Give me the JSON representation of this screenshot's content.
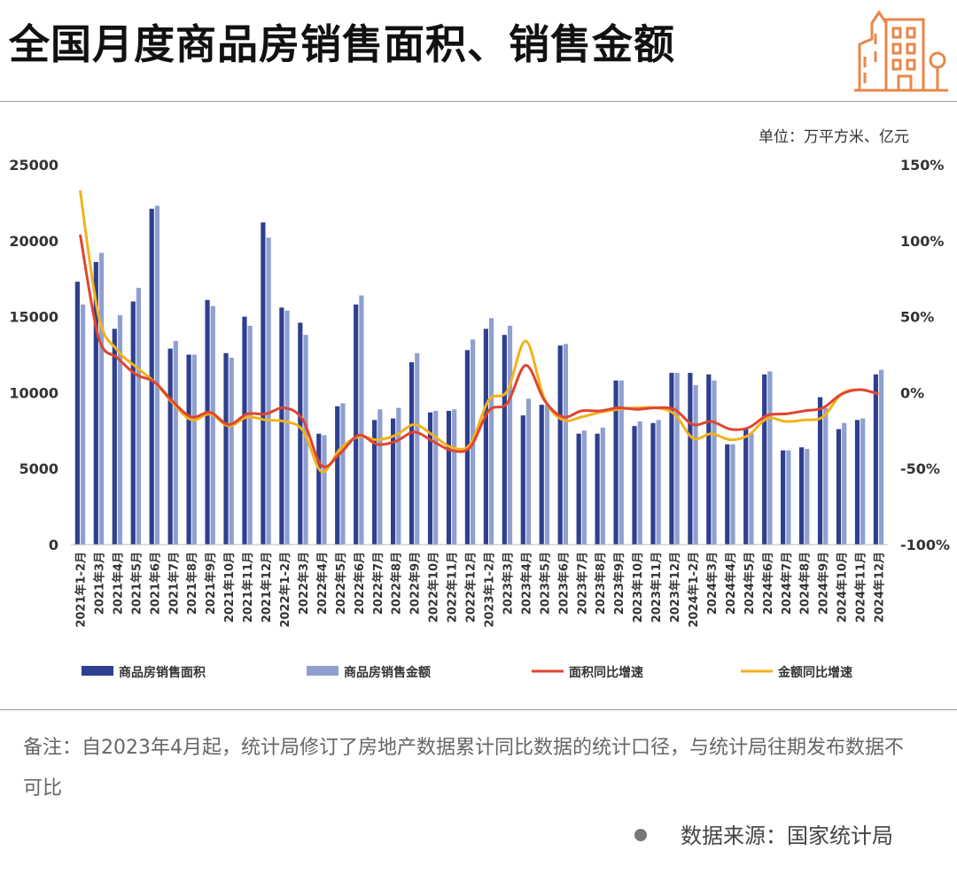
{
  "title": "全国月度商品房销售面积、销售金额",
  "unit_label": "单位：万平方米、亿元",
  "note": "备注：自2023年4月起，统计局修订了房地产数据累计同比数据的统计口径，与统计局往期发布数据不可比",
  "source": "数据来源：国家统计局",
  "icons": {
    "header": "building-icon",
    "source_marker": "dot-icon"
  },
  "colors": {
    "area_bar": "#2e3f8f",
    "amount_bar": "#8f9fd0",
    "area_line": "#e0452f",
    "amount_line": "#f2b21c"
  },
  "chart_data": {
    "type": "bar",
    "categories": [
      "2021年1-2月",
      "2021年3月",
      "2021年4月",
      "2021年5月",
      "2021年6月",
      "2021年7月",
      "2021年8月",
      "2021年9月",
      "2021年10月",
      "2021年11月",
      "2021年12月",
      "2022年1-2月",
      "2022年3月",
      "2022年4月",
      "2022年5月",
      "2022年6月",
      "2022年7月",
      "2022年8月",
      "2022年9月",
      "2022年10月",
      "2022年11月",
      "2022年12月",
      "2023年1-2月",
      "2023年3月",
      "2023年4月",
      "2023年5月",
      "2023年6月",
      "2023年7月",
      "2023年8月",
      "2023年9月",
      "2023年10月",
      "2023年11月",
      "2023年12月",
      "2024年1-2月",
      "2024年3月",
      "2024年4月",
      "2024年5月",
      "2024年6月",
      "2024年7月",
      "2024年8月",
      "2024年9月",
      "2024年10月",
      "2024年11月",
      "2024年12月"
    ],
    "y_left": {
      "ticks": [
        "0",
        "5000",
        "10000",
        "15000",
        "20000",
        "25000"
      ],
      "lim": [
        0,
        25000
      ]
    },
    "y_right": {
      "ticks": [
        "-100%",
        "-50%",
        "0%",
        "50%",
        "100%",
        "150%"
      ],
      "lim": [
        -100,
        150
      ]
    },
    "grid": false,
    "legend_position": "bottom",
    "series": [
      {
        "name": "商品房销售面积",
        "type": "bar",
        "axis": "left",
        "values": [
          17300,
          18600,
          14200,
          16000,
          22100,
          12900,
          12500,
          16100,
          12600,
          15000,
          21200,
          15600,
          14600,
          7300,
          9100,
          15800,
          8200,
          8300,
          12000,
          8700,
          8800,
          12800,
          14200,
          13800,
          8500,
          9200,
          13100,
          7300,
          7300,
          10800,
          7800,
          8000,
          11300,
          11300,
          11200,
          6600,
          7600,
          11200,
          6200,
          6400,
          9700,
          7600,
          8200,
          11200
        ]
      },
      {
        "name": "商品房销售金额",
        "type": "bar",
        "axis": "left",
        "values": [
          15800,
          19200,
          15100,
          16900,
          22300,
          13400,
          12500,
          15700,
          12300,
          14400,
          20200,
          15400,
          13800,
          7200,
          9300,
          16400,
          8900,
          9000,
          12600,
          8800,
          8900,
          13500,
          14900,
          14400,
          9600,
          9200,
          13200,
          7500,
          7700,
          10800,
          8100,
          8200,
          11300,
          10500,
          10800,
          6600,
          7300,
          11400,
          6200,
          6300,
          9000,
          8000,
          8300,
          11500
        ]
      },
      {
        "name": "面积同比增速",
        "type": "line",
        "axis": "right",
        "values": [
          104,
          36,
          23,
          12,
          7,
          -6,
          -16,
          -13,
          -21,
          -14,
          -14,
          -10,
          -18,
          -48,
          -40,
          -28,
          -34,
          -32,
          -26,
          -32,
          -38,
          -36,
          -12,
          -7,
          18,
          -5,
          -16,
          -12,
          -12,
          -10,
          -11,
          -10,
          -11,
          -21,
          -19,
          -24,
          -23,
          -15,
          -14,
          -12,
          -10,
          -1,
          2,
          -1
        ]
      },
      {
        "name": "金额同比增速",
        "type": "line",
        "axis": "right",
        "values": [
          133,
          50,
          28,
          17,
          7,
          -7,
          -18,
          -14,
          -22,
          -16,
          -18,
          -19,
          -25,
          -52,
          -37,
          -29,
          -31,
          -28,
          -21,
          -28,
          -36,
          -34,
          -5,
          1,
          34,
          -4,
          -18,
          -16,
          -13,
          -11,
          -10,
          -10,
          -14,
          -30,
          -27,
          -31,
          -28,
          -17,
          -19,
          -18,
          -16,
          -1,
          2,
          -1
        ]
      }
    ]
  }
}
